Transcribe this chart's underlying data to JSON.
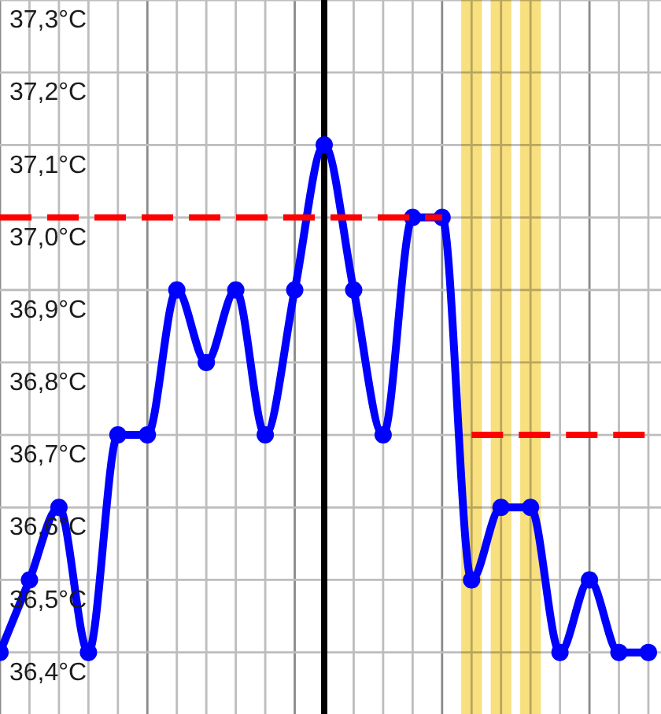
{
  "chart_data": {
    "type": "line",
    "categories": [
      null,
      null,
      null,
      null,
      null,
      null,
      null,
      null,
      null,
      null,
      null,
      null,
      null,
      null,
      null,
      null,
      null,
      null,
      null,
      null,
      null,
      null,
      null
    ],
    "series": [
      {
        "color": "#0000ff",
        "marker": "circle",
        "line_style": "solid",
        "values": [
          36.4,
          36.5,
          36.6,
          36.4,
          36.7,
          36.7,
          36.9,
          36.8,
          36.9,
          36.7,
          36.9,
          37.1,
          36.9,
          36.7,
          37.0,
          37.0,
          36.5,
          36.6,
          36.6,
          36.4,
          36.5,
          36.4,
          36.4
        ]
      },
      {
        "color": "#ff0000",
        "marker": "none",
        "line_style": "dashed",
        "values": [
          37.0,
          37.0,
          37.0,
          37.0,
          37.0,
          37.0,
          37.0,
          37.0,
          37.0,
          37.0,
          37.0,
          37.0,
          37.0,
          37.0,
          37.0,
          37.0,
          null,
          null,
          null,
          null,
          null,
          null,
          null
        ]
      },
      {
        "color": "#ff0000",
        "marker": "none",
        "line_style": "dashed",
        "values": [
          null,
          null,
          null,
          null,
          null,
          null,
          null,
          null,
          null,
          null,
          null,
          null,
          null,
          null,
          null,
          null,
          36.7,
          36.7,
          36.7,
          36.7,
          36.7,
          36.7,
          36.7
        ]
      }
    ],
    "ylim": [
      36.315,
      37.3
    ],
    "yticks": [
      {
        "value": 36.4,
        "label": "36,4°C"
      },
      {
        "value": 36.5,
        "label": "36,5°C"
      },
      {
        "value": 36.6,
        "label": "36,6°C"
      },
      {
        "value": 36.7,
        "label": "36,7°C"
      },
      {
        "value": 36.8,
        "label": "36,8°C"
      },
      {
        "value": 36.9,
        "label": "36,9°C"
      },
      {
        "value": 37.0,
        "label": "37,0°C"
      },
      {
        "value": 37.1,
        "label": "37,1°C"
      },
      {
        "value": 37.2,
        "label": "37,2°C"
      },
      {
        "value": 37.3,
        "label": "37,3°C"
      }
    ],
    "grid": true,
    "tick_labels": "y"
  }
}
